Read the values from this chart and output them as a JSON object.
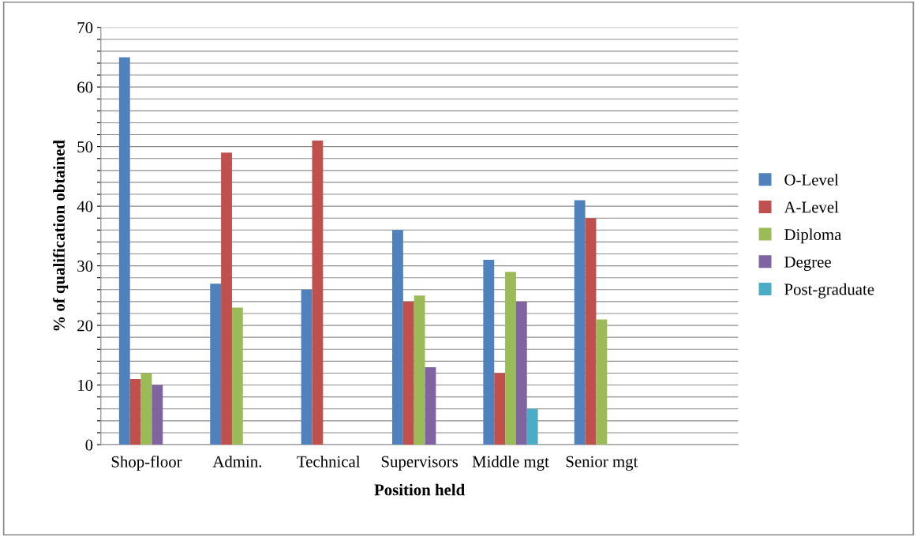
{
  "chart_data": {
    "type": "bar",
    "xlabel": "Position held",
    "ylabel": "% of qualification obtained",
    "categories": [
      "Shop-floor",
      "Admin.",
      "Technical",
      "Supervisors",
      "Middle mgt",
      "Senior mgt",
      null
    ],
    "series": [
      {
        "name": "O-Level",
        "color": "#4f81bd",
        "values": [
          65,
          27,
          26,
          36,
          31,
          41,
          null
        ]
      },
      {
        "name": "A-Level",
        "color": "#c0504d",
        "values": [
          11,
          49,
          51,
          24,
          12,
          38,
          null
        ]
      },
      {
        "name": "Diploma",
        "color": "#9bbb59",
        "values": [
          12,
          23,
          null,
          25,
          29,
          21,
          null
        ]
      },
      {
        "name": "Degree",
        "color": "#8064a2",
        "values": [
          10,
          null,
          null,
          13,
          24,
          null,
          null
        ]
      },
      {
        "name": "Post-graduate",
        "color": "#4bacc6",
        "values": [
          null,
          null,
          null,
          null,
          6,
          null,
          null
        ]
      }
    ],
    "ylim": [
      0,
      70
    ],
    "yticks": [
      0,
      {
        "value": 2,
        "label": null
      },
      {
        "value": 4,
        "label": null
      },
      {
        "value": 6,
        "label": null
      },
      {
        "value": 8,
        "label": null
      },
      10,
      {
        "value": 12,
        "label": null
      },
      {
        "value": 14,
        "label": null
      },
      {
        "value": 16,
        "label": null
      },
      {
        "value": 18,
        "label": null
      },
      20,
      {
        "value": 22,
        "label": null
      },
      {
        "value": 24,
        "label": null
      },
      {
        "value": 26,
        "label": null
      },
      {
        "value": 28,
        "label": null
      },
      30,
      {
        "value": 32,
        "label": null
      },
      {
        "value": 34,
        "label": null
      },
      {
        "value": 36,
        "label": null
      },
      {
        "value": 38,
        "label": null
      },
      40,
      {
        "value": 42,
        "label": null
      },
      {
        "value": 44,
        "label": null
      },
      {
        "value": 46,
        "label": null
      },
      {
        "value": 48,
        "label": null
      },
      50,
      {
        "value": 52,
        "label": null
      },
      {
        "value": 54,
        "label": null
      },
      {
        "value": 56,
        "label": null
      },
      {
        "value": 58,
        "label": null
      },
      60,
      {
        "value": 62,
        "label": null
      },
      {
        "value": 64,
        "label": null
      },
      {
        "value": 66,
        "label": null
      },
      {
        "value": 68,
        "label": null
      },
      70
    ],
    "grid": "y",
    "legend": "right"
  }
}
